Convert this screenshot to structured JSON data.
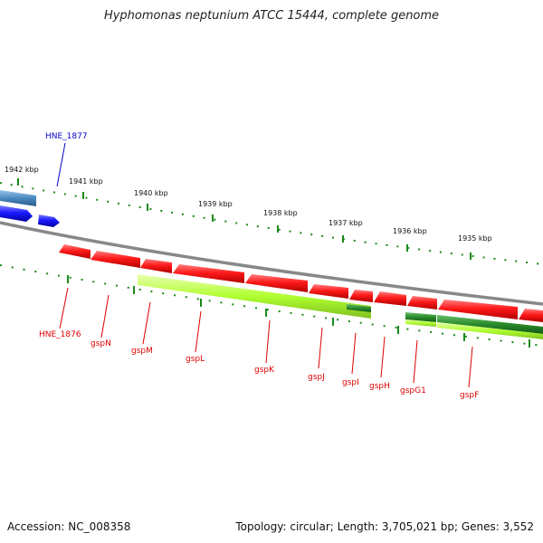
{
  "title": "Hyphomonas neptunium ATCC 15444, complete genome",
  "footer": {
    "accession": "Accession: NC_008358",
    "summary": "Topology: circular; Length: 3,705,021 bp; Genes: 3,552"
  },
  "colors": {
    "forward_gene": "#ff1a1a",
    "reverse_gene": "#1a1aff",
    "highlight_gene": "#4a8ac0",
    "cds_light": "#b0ff30",
    "cds_dark": "#2a8a2a",
    "backbone": "#888888",
    "tick": "#1a8a1a",
    "gene_label": "#dd0000",
    "selected_label": "#0000cc"
  },
  "scale_labels": [
    "1942 kbp",
    "1941 kbp",
    "1940 kbp",
    "1939 kbp",
    "1938 kbp",
    "1937 kbp",
    "1936 kbp",
    "1935 kbp"
  ],
  "genes": [
    "HNE_1876",
    "gspN",
    "gspM",
    "gspL",
    "gspK",
    "gspJ",
    "gspI",
    "gspH",
    "gspG1",
    "gspF"
  ],
  "selected_gene": "HNE_1877"
}
